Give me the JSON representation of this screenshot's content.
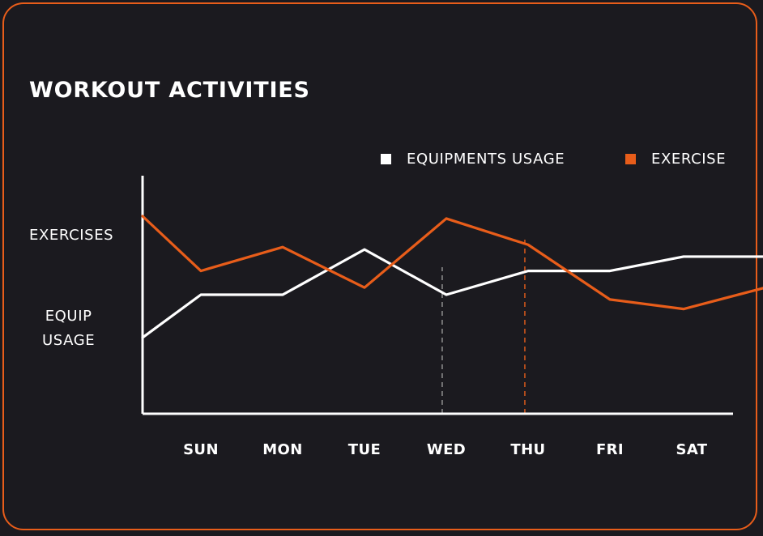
{
  "title": "WORKOUT ACTIVITIES",
  "legend": {
    "equip_label": "EQUIPMENTS USAGE",
    "exercise_label": "EXERCISE"
  },
  "yaxis": {
    "label_top": "EXERCISES",
    "label_bottom_line1": "EQUIP",
    "label_bottom_line2": "USAGE"
  },
  "colors": {
    "background": "#1b1a1f",
    "accent": "#e85d1a",
    "equip": "#ffffff",
    "exercise": "#e85d1a"
  },
  "chart_data": {
    "type": "line",
    "title": "WORKOUT ACTIVITIES",
    "categories": [
      "SUN",
      "MON",
      "TUE",
      "WED",
      "THU",
      "FRI",
      "SAT"
    ],
    "x": [
      -0.8,
      0,
      1,
      2,
      3,
      4,
      5,
      5.9,
      6.9
    ],
    "series": [
      {
        "name": "EQUIPMENTS USAGE",
        "color": "#ffffff",
        "values": [
          32,
          50,
          50,
          69,
          50,
          60,
          60,
          66,
          66
        ]
      },
      {
        "name": "EXERCISE",
        "color": "#e85d1a",
        "values": [
          83,
          60,
          70,
          53,
          82,
          71,
          48,
          44,
          53
        ]
      }
    ],
    "ylim": [
      0,
      100
    ],
    "markers": [
      {
        "x": 2.95,
        "color": "#9a9a9a",
        "style": "dashed"
      },
      {
        "x": 3.96,
        "color": "#e85d1a",
        "style": "dashed"
      }
    ],
    "ylabels": [
      "EXERCISES",
      "EQUIP USAGE"
    ],
    "legend_position": "top-right",
    "grid": false
  }
}
